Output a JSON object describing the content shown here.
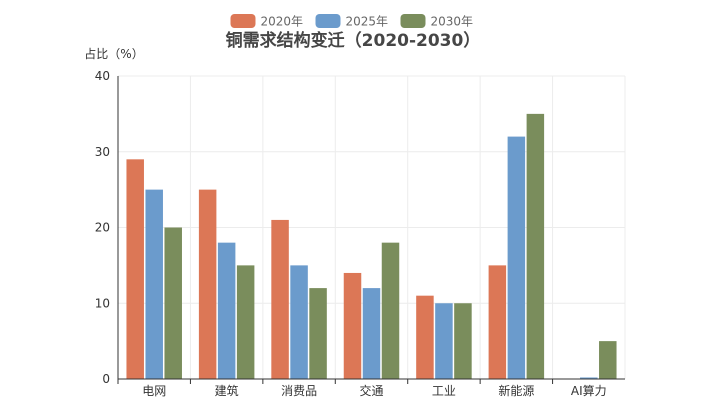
{
  "chart_data": {
    "type": "bar",
    "title": "铜需求结构变迁（2020-2030）",
    "ylabel": "占比（%）",
    "xlabel": "",
    "ylim": [
      0,
      40
    ],
    "yticks": [
      0,
      10,
      20,
      30,
      40
    ],
    "grid": true,
    "legend_position": "top-center",
    "categories": [
      "电网",
      "建筑",
      "消费品",
      "交通",
      "工业",
      "新能源",
      "AI算力"
    ],
    "series": [
      {
        "name": "2020年",
        "color": "#dc7756",
        "values": [
          29,
          25,
          21,
          14,
          11,
          15,
          0
        ]
      },
      {
        "name": "2025年",
        "color": "#6b9bcc",
        "values": [
          25,
          18,
          15,
          12,
          10,
          32,
          0.2
        ]
      },
      {
        "name": "2030年",
        "color": "#7a8d5c",
        "values": [
          20,
          15,
          12,
          18,
          10,
          35,
          5
        ]
      }
    ]
  }
}
